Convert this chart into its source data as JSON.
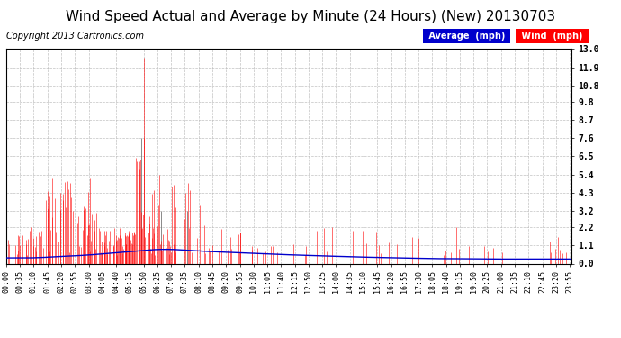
{
  "title": "Wind Speed Actual and Average by Minute (24 Hours) (New) 20130703",
  "copyright": "Copyright 2013 Cartronics.com",
  "background_color": "#ffffff",
  "plot_bg_color": "#ffffff",
  "grid_color": "#bbbbbb",
  "yticks": [
    0.0,
    1.1,
    2.2,
    3.2,
    4.3,
    5.4,
    6.5,
    7.6,
    8.7,
    9.8,
    10.8,
    11.9,
    13.0
  ],
  "ymax": 13.0,
  "ymin": 0.0,
  "wind_color": "#ff0000",
  "dark_color": "#333333",
  "avg_color": "#0000cc",
  "legend_avg_bg": "#0000cc",
  "legend_wind_bg": "#ff0000",
  "title_fontsize": 11,
  "copyright_fontsize": 7,
  "tick_fontsize": 6,
  "ytick_fontsize": 7,
  "total_minutes": 1440,
  "xtick_interval": 35
}
